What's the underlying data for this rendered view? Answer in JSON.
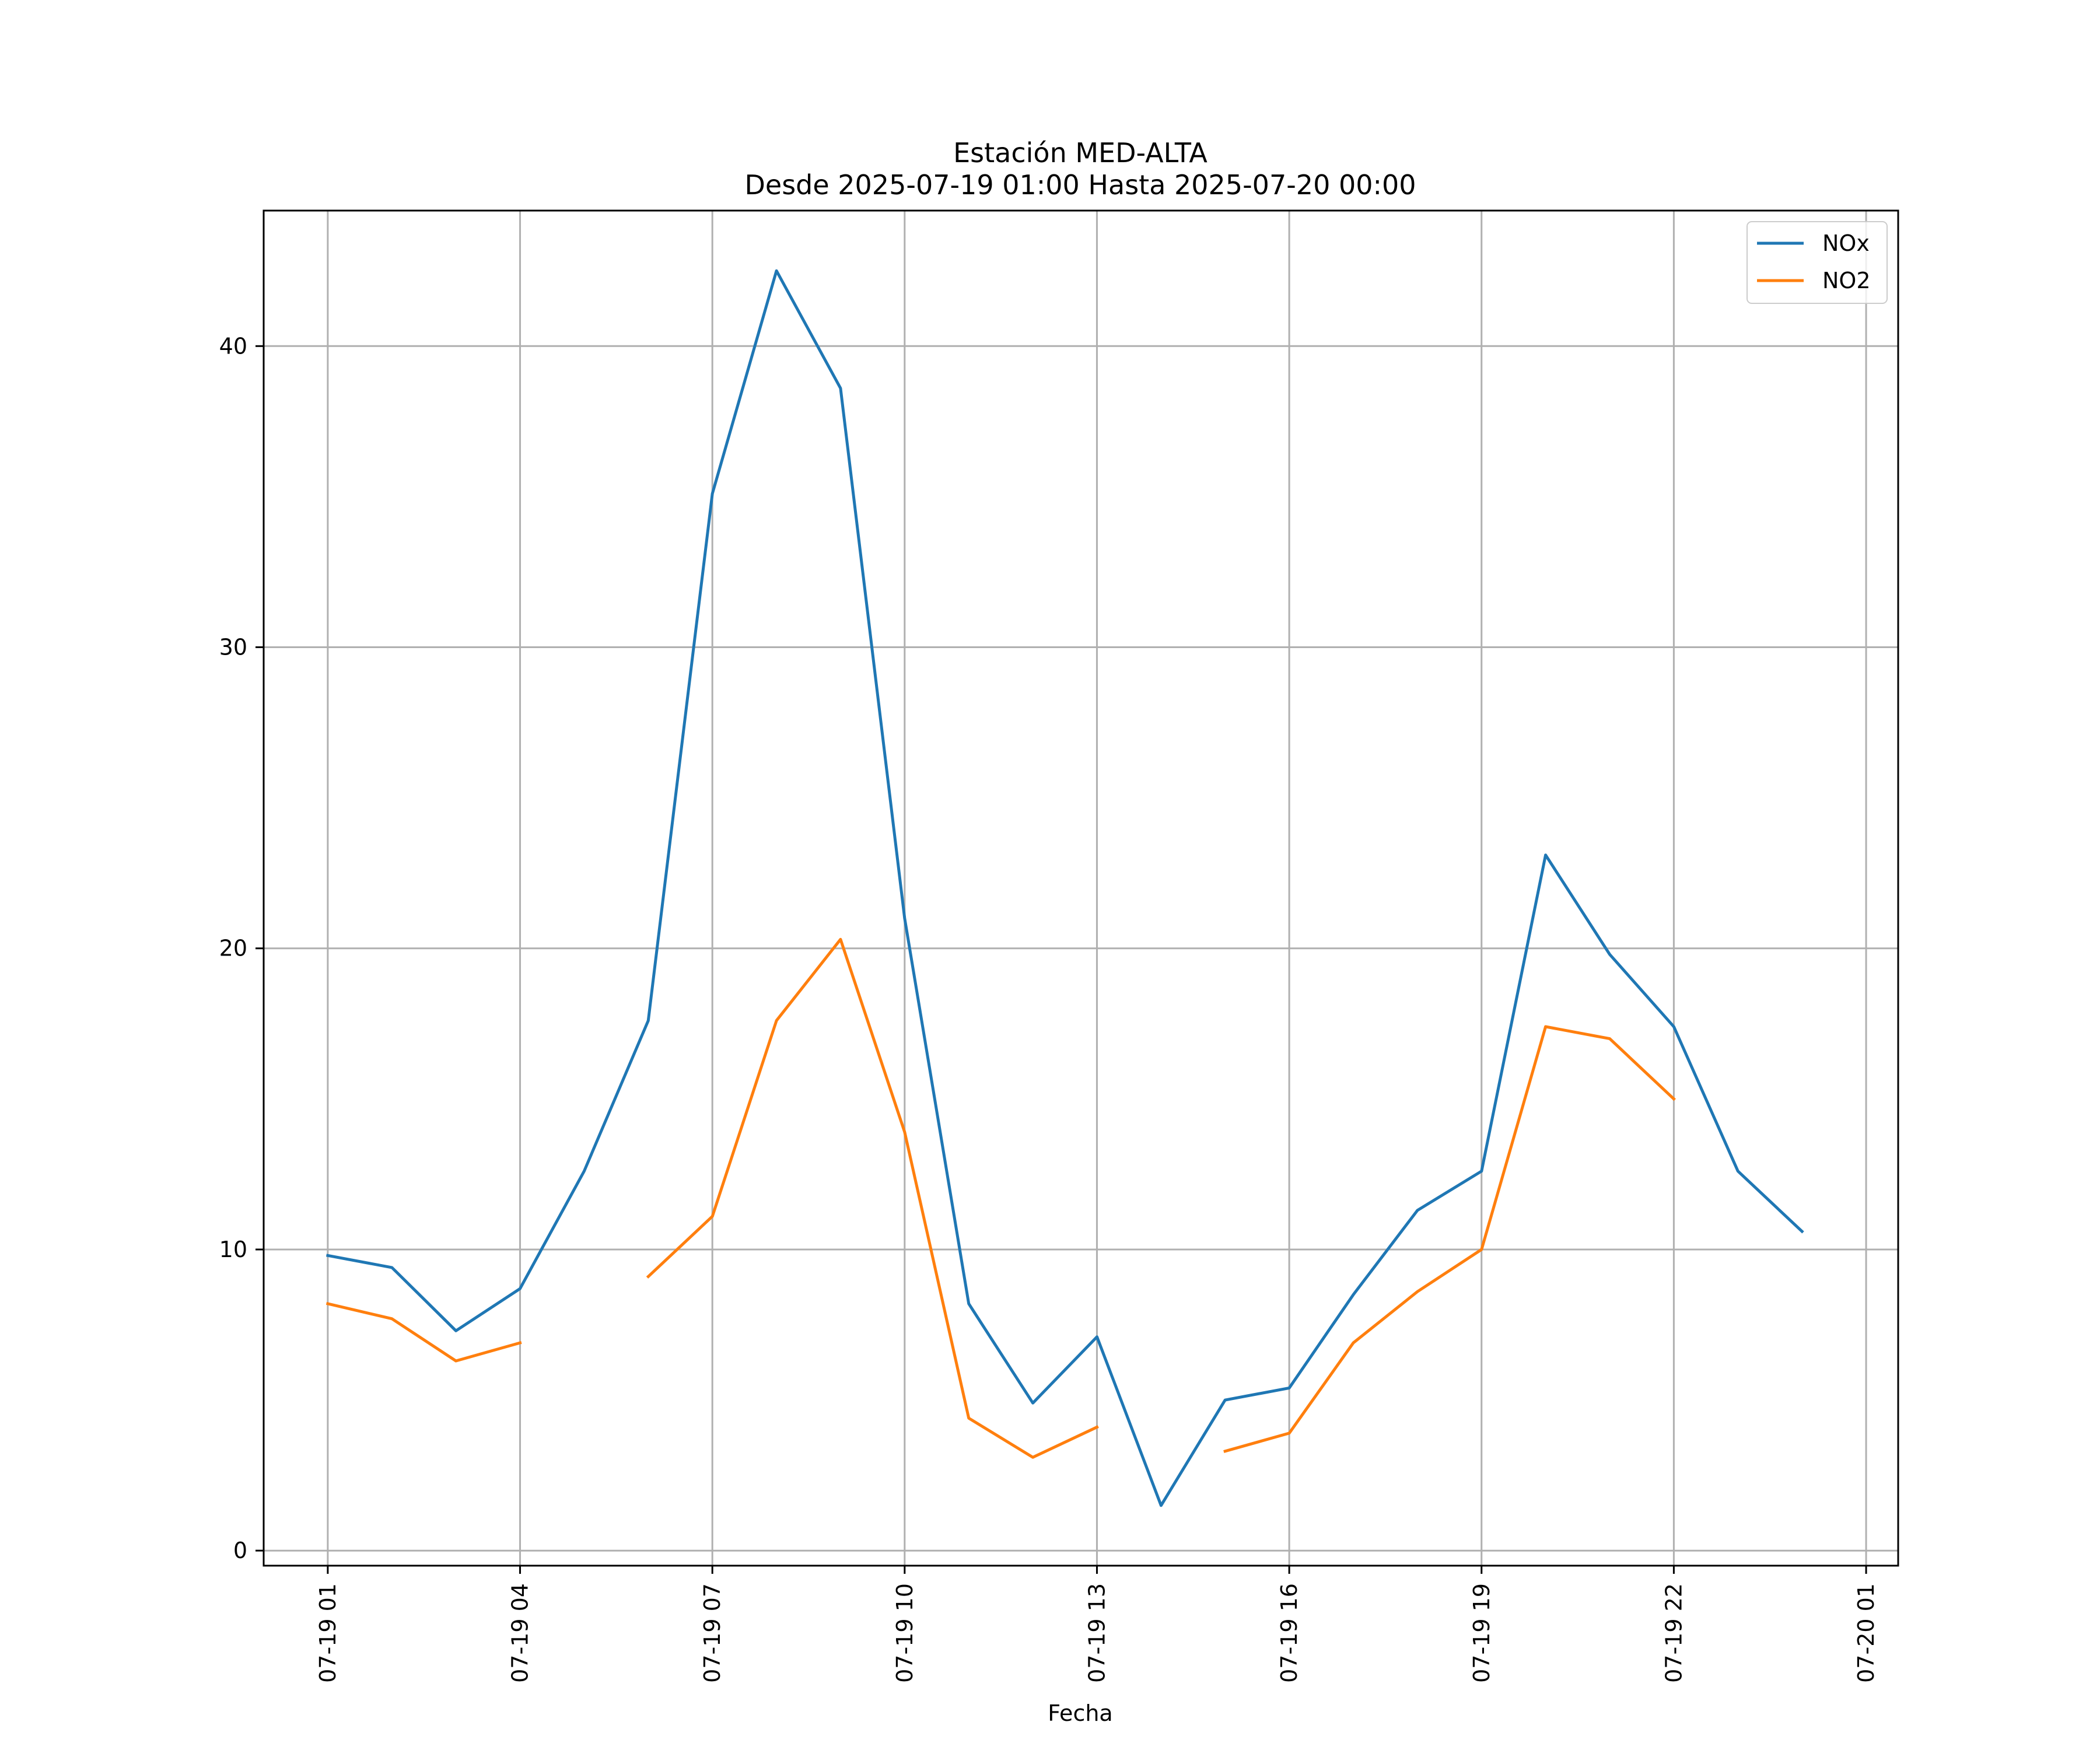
{
  "chart_data": {
    "type": "line",
    "title": "Estación MED-ALTA",
    "subtitle": "Desde 2025-07-19 01:00 Hasta 2025-07-20 00:00",
    "xlabel": "Fecha",
    "ylabel": "",
    "x": [
      "2025-07-19 01:00",
      "2025-07-19 02:00",
      "2025-07-19 03:00",
      "2025-07-19 04:00",
      "2025-07-19 05:00",
      "2025-07-19 06:00",
      "2025-07-19 07:00",
      "2025-07-19 08:00",
      "2025-07-19 09:00",
      "2025-07-19 10:00",
      "2025-07-19 11:00",
      "2025-07-19 12:00",
      "2025-07-19 13:00",
      "2025-07-19 14:00",
      "2025-07-19 15:00",
      "2025-07-19 16:00",
      "2025-07-19 17:00",
      "2025-07-19 18:00",
      "2025-07-19 19:00",
      "2025-07-19 20:00",
      "2025-07-19 21:00",
      "2025-07-19 22:00",
      "2025-07-19 23:00",
      "2025-07-20 00:00"
    ],
    "series": [
      {
        "name": "NOx",
        "color": "#1f77b4",
        "values": [
          9.8,
          9.4,
          7.3,
          8.7,
          12.6,
          17.6,
          35.1,
          42.5,
          38.6,
          21.0,
          8.2,
          4.9,
          7.1,
          1.5,
          5.0,
          5.4,
          8.5,
          11.3,
          12.6,
          23.1,
          19.8,
          17.4,
          12.6,
          10.6
        ]
      },
      {
        "name": "NO2",
        "color": "#ff7f0e",
        "values": [
          8.2,
          7.7,
          6.3,
          6.9,
          null,
          9.1,
          11.1,
          17.6,
          20.3,
          13.9,
          4.4,
          3.1,
          4.1,
          null,
          3.3,
          3.9,
          6.9,
          8.6,
          10.0,
          17.4,
          17.0,
          15.0,
          null,
          null
        ]
      }
    ],
    "xlim": [
      "2025-07-19 00:00",
      "2025-07-20 01:30"
    ],
    "xticks": [
      "2025-07-19 01:00",
      "2025-07-19 04:00",
      "2025-07-19 07:00",
      "2025-07-19 10:00",
      "2025-07-19 13:00",
      "2025-07-19 16:00",
      "2025-07-19 19:00",
      "2025-07-19 22:00",
      "2025-07-20 01:00"
    ],
    "xtick_labels": [
      "07-19 01",
      "07-19 04",
      "07-19 07",
      "07-19 10",
      "07-19 13",
      "07-19 16",
      "07-19 19",
      "07-19 22",
      "07-20 01"
    ],
    "ylim": [
      -0.5,
      44.5
    ],
    "yticks": [
      0,
      10,
      20,
      30,
      40
    ],
    "ytick_labels": [
      "0",
      "10",
      "20",
      "30",
      "40"
    ],
    "grid": true,
    "legend_position": "top-right"
  }
}
